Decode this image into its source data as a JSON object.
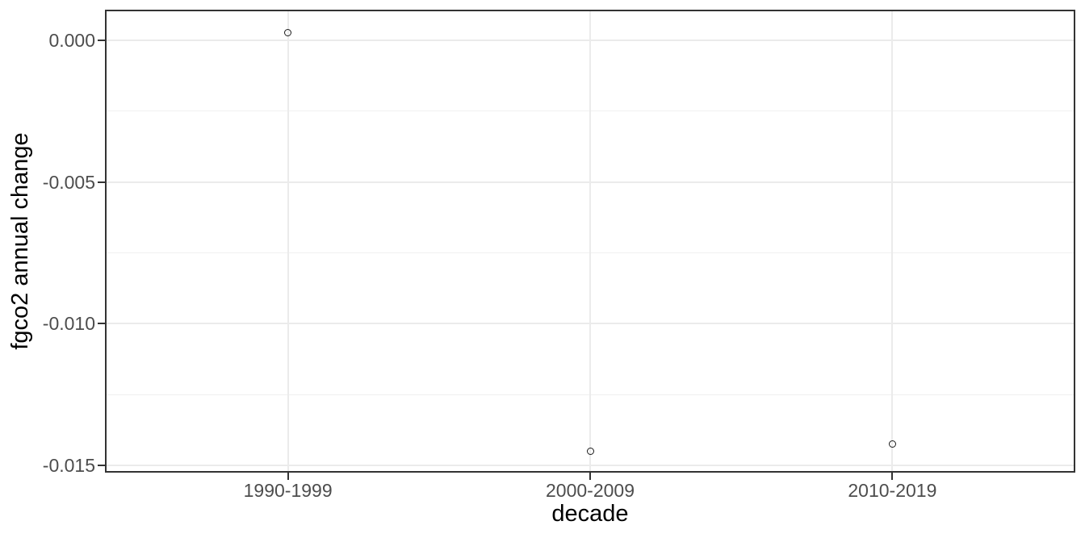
{
  "figure": {
    "background": "#ffffff"
  },
  "chart_data": {
    "type": "scatter",
    "categories": [
      "1990-1999",
      "2000-2009",
      "2010-2019"
    ],
    "values": [
      0.00026,
      -0.01449,
      -0.01426
    ],
    "title": "",
    "xlabel": "decade",
    "ylabel": "fgco2 annual change",
    "ylim": [
      -0.0152,
      0.00102
    ],
    "yticks": [
      0,
      -0.005,
      -0.01,
      -0.015
    ],
    "ytick_labels": [
      "0.000",
      "-0.005",
      "-0.010",
      "-0.015"
    ],
    "yticks_minor": [
      -0.0025,
      -0.0075,
      -0.0125
    ],
    "grid": "major-and-minor",
    "legend": "none",
    "marker": "open-circle"
  },
  "style": {
    "panel_border_color": "#333333",
    "grid_major_color": "#ebebeb",
    "grid_minor_color": "#f0f0f0",
    "tick_color": "#333333",
    "tick_label_color": "#4d4d4d",
    "axis_title_color": "#000000",
    "point_color": "#1a1a1a"
  }
}
